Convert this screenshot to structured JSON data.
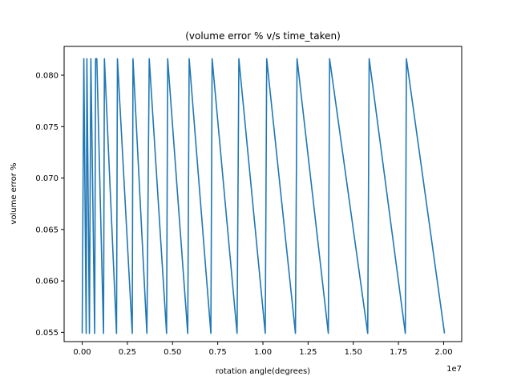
{
  "chart_data": {
    "type": "line",
    "title": "(volume error % v/s time_taken)",
    "xlabel": "rotation angle(degrees)",
    "ylabel": "volume error %",
    "x_offset_label": "1e7",
    "xlim": [
      -1000000,
      21000000
    ],
    "ylim": [
      0.0541,
      0.0828
    ],
    "grid": false,
    "color": "#1f77b4",
    "xticks": [
      {
        "value": 0,
        "label": "0.00"
      },
      {
        "value": 2500000,
        "label": "0.25"
      },
      {
        "value": 5000000,
        "label": "0.50"
      },
      {
        "value": 7500000,
        "label": "0.75"
      },
      {
        "value": 10000000,
        "label": "1.00"
      },
      {
        "value": 12500000,
        "label": "1.25"
      },
      {
        "value": 15000000,
        "label": "1.50"
      },
      {
        "value": 17500000,
        "label": "1.75"
      },
      {
        "value": 20000000,
        "label": "2.00"
      }
    ],
    "yticks": [
      {
        "value": 0.055,
        "label": "0.055"
      },
      {
        "value": 0.06,
        "label": "0.060"
      },
      {
        "value": 0.065,
        "label": "0.065"
      },
      {
        "value": 0.07,
        "label": "0.070"
      },
      {
        "value": 0.075,
        "label": "0.075"
      },
      {
        "value": 0.08,
        "label": "0.080"
      }
    ],
    "series": [
      {
        "x": [
          0,
          90000,
          220000,
          260000,
          400000,
          480000,
          690000,
          740000,
          810000,
          1180000,
          1230000,
          1900000,
          1950000,
          2770000,
          2810000,
          3580000,
          3710000,
          4670000,
          4730000,
          5840000,
          5920000,
          7120000,
          7190000,
          8570000,
          8670000,
          10130000,
          10210000,
          11800000,
          11890000,
          13620000,
          13690000,
          15800000,
          15880000,
          17880000,
          17940000,
          20050000
        ],
        "y": [
          0.0549,
          0.0816,
          0.0549,
          0.0816,
          0.0549,
          0.0816,
          0.0549,
          0.0816,
          0.0816,
          0.0549,
          0.0816,
          0.0549,
          0.0816,
          0.0549,
          0.0816,
          0.0549,
          0.0816,
          0.0549,
          0.0816,
          0.0549,
          0.0816,
          0.0549,
          0.0816,
          0.0549,
          0.0816,
          0.0549,
          0.0816,
          0.0549,
          0.0816,
          0.0549,
          0.0816,
          0.0549,
          0.0816,
          0.0549,
          0.0816,
          0.0549
        ]
      }
    ]
  }
}
